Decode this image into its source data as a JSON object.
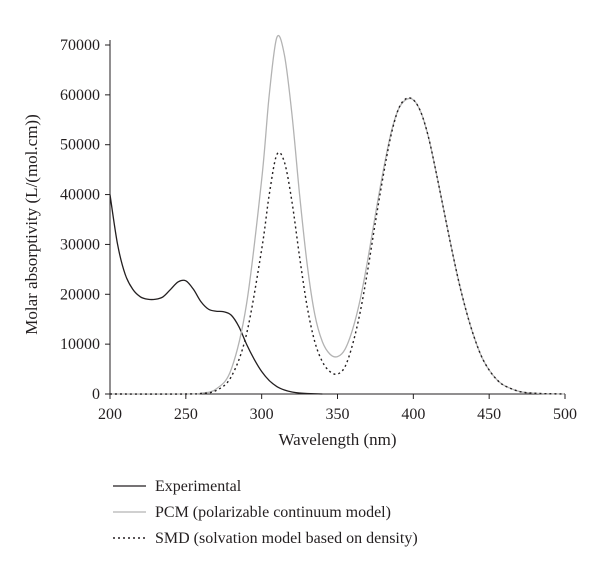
{
  "chart_data": {
    "type": "line",
    "title": "",
    "xlabel": "Wavelength (nm)",
    "ylabel": "Molar absorptivity (L/(mol.cm))",
    "xlim": [
      200,
      500
    ],
    "ylim": [
      0,
      70000
    ],
    "xticks": [
      200,
      250,
      300,
      350,
      400,
      450,
      500
    ],
    "yticks": [
      0,
      10000,
      20000,
      30000,
      40000,
      50000,
      60000,
      70000
    ],
    "grid": false,
    "legend_position": "bottom-left",
    "series": [
      {
        "name": "Experimental",
        "color": "#231f20",
        "style": "solid",
        "points": [
          [
            200,
            40000
          ],
          [
            205,
            30000
          ],
          [
            210,
            24000
          ],
          [
            215,
            21000
          ],
          [
            220,
            19500
          ],
          [
            225,
            19000
          ],
          [
            230,
            19000
          ],
          [
            235,
            19500
          ],
          [
            240,
            21000
          ],
          [
            245,
            22500
          ],
          [
            250,
            22700
          ],
          [
            255,
            21000
          ],
          [
            260,
            18500
          ],
          [
            265,
            17000
          ],
          [
            270,
            16600
          ],
          [
            275,
            16500
          ],
          [
            280,
            15800
          ],
          [
            285,
            13500
          ],
          [
            290,
            10000
          ],
          [
            295,
            7000
          ],
          [
            300,
            4500
          ],
          [
            305,
            2700
          ],
          [
            310,
            1500
          ],
          [
            315,
            800
          ],
          [
            320,
            400
          ],
          [
            325,
            200
          ],
          [
            330,
            100
          ],
          [
            340,
            0
          ]
        ]
      },
      {
        "name": "PCM (polarizable continuum model)",
        "color": "#b3b3b3",
        "style": "solid",
        "points": [
          [
            200,
            0
          ],
          [
            250,
            0
          ],
          [
            260,
            150
          ],
          [
            270,
            1000
          ],
          [
            280,
            5000
          ],
          [
            290,
            18000
          ],
          [
            300,
            43000
          ],
          [
            305,
            60000
          ],
          [
            310,
            71500
          ],
          [
            315,
            68000
          ],
          [
            320,
            56000
          ],
          [
            325,
            40000
          ],
          [
            330,
            26000
          ],
          [
            335,
            16000
          ],
          [
            340,
            10500
          ],
          [
            345,
            8000
          ],
          [
            350,
            7500
          ],
          [
            355,
            9000
          ],
          [
            360,
            13000
          ],
          [
            365,
            19000
          ],
          [
            370,
            27000
          ],
          [
            375,
            36000
          ],
          [
            380,
            44500
          ],
          [
            385,
            52000
          ],
          [
            390,
            57000
          ],
          [
            395,
            59000
          ],
          [
            400,
            59000
          ],
          [
            405,
            56500
          ],
          [
            410,
            51500
          ],
          [
            415,
            44500
          ],
          [
            420,
            37000
          ],
          [
            425,
            29500
          ],
          [
            430,
            22500
          ],
          [
            435,
            16500
          ],
          [
            440,
            11500
          ],
          [
            445,
            7500
          ],
          [
            450,
            4800
          ],
          [
            455,
            2900
          ],
          [
            460,
            1700
          ],
          [
            470,
            500
          ],
          [
            480,
            150
          ],
          [
            490,
            50
          ],
          [
            500,
            0
          ]
        ]
      },
      {
        "name": "SMD (solvation model based on density)",
        "color": "#231f20",
        "style": "dotted",
        "points": [
          [
            200,
            0
          ],
          [
            250,
            0
          ],
          [
            260,
            100
          ],
          [
            270,
            700
          ],
          [
            280,
            3500
          ],
          [
            290,
            12000
          ],
          [
            300,
            29000
          ],
          [
            305,
            40000
          ],
          [
            310,
            48000
          ],
          [
            315,
            46500
          ],
          [
            320,
            38500
          ],
          [
            325,
            27500
          ],
          [
            330,
            17500
          ],
          [
            335,
            10500
          ],
          [
            340,
            6500
          ],
          [
            345,
            4500
          ],
          [
            350,
            4000
          ],
          [
            355,
            5500
          ],
          [
            360,
            10000
          ],
          [
            365,
            16500
          ],
          [
            370,
            25000
          ],
          [
            375,
            34500
          ],
          [
            380,
            43500
          ],
          [
            385,
            51500
          ],
          [
            390,
            57000
          ],
          [
            395,
            59200
          ],
          [
            400,
            59000
          ],
          [
            405,
            56500
          ],
          [
            410,
            51500
          ],
          [
            415,
            44500
          ],
          [
            420,
            37000
          ],
          [
            425,
            29500
          ],
          [
            430,
            22500
          ],
          [
            435,
            16500
          ],
          [
            440,
            11500
          ],
          [
            445,
            7500
          ],
          [
            450,
            4800
          ],
          [
            455,
            2900
          ],
          [
            460,
            1700
          ],
          [
            470,
            500
          ],
          [
            480,
            150
          ],
          [
            490,
            50
          ],
          [
            500,
            0
          ]
        ]
      }
    ]
  }
}
